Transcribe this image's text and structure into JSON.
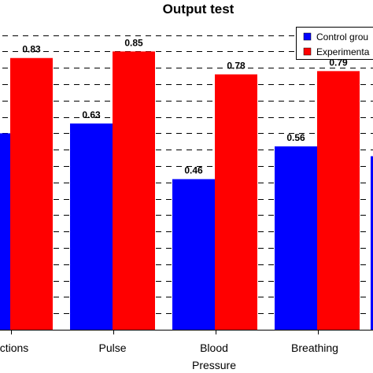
{
  "chart_data": {
    "type": "bar",
    "title": "Output  test",
    "categories": [
      "ctions",
      "Pulse",
      "Blood Pressure",
      "Breathing"
    ],
    "category_lines": [
      [
        "ctions"
      ],
      [
        "Pulse"
      ],
      [
        "Blood",
        "Pressure"
      ],
      [
        "Breathing"
      ]
    ],
    "series": [
      {
        "name": "Control grou",
        "color": "#0000ff",
        "values": [
          0.6,
          0.63,
          0.46,
          0.56
        ],
        "labels": [
          "",
          "0.63",
          "0.46",
          "0.56"
        ]
      },
      {
        "name": "Experimenta",
        "color": "#ff0000",
        "values": [
          0.83,
          0.85,
          0.78,
          0.79
        ],
        "labels": [
          "0.83",
          "0.85",
          "0.78",
          "0.79"
        ]
      }
    ],
    "ylim": [
      0,
      1
    ],
    "grid": true,
    "legend": "top-right"
  }
}
